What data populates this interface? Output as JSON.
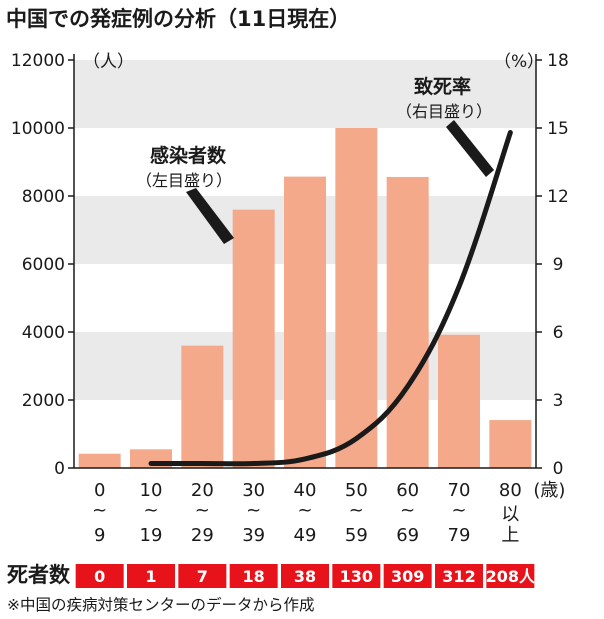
{
  "chart_data": {
    "type": "bar",
    "title": "中国での発症例の分析（11日現在）",
    "categories": [
      {
        "line1": "0",
        "tilde": "~",
        "line2": "9"
      },
      {
        "line1": "10",
        "tilde": "~",
        "line2": "19"
      },
      {
        "line1": "20",
        "tilde": "~",
        "line2": "29"
      },
      {
        "line1": "30",
        "tilde": "~",
        "line2": "39"
      },
      {
        "line1": "40",
        "tilde": "~",
        "line2": "49"
      },
      {
        "line1": "50",
        "tilde": "~",
        "line2": "59"
      },
      {
        "line1": "60",
        "tilde": "~",
        "line2": "69"
      },
      {
        "line1": "70",
        "tilde": "~",
        "line2": "79"
      },
      {
        "line1": "80",
        "tilde": "以",
        "line2": "上"
      }
    ],
    "category_unit": "(歳)",
    "series": [
      {
        "name": "感染者数",
        "axis": "left",
        "kind": "bar",
        "color": "#f4a98a",
        "values": [
          420,
          550,
          3600,
          7600,
          8570,
          10000,
          8560,
          3920,
          1410
        ]
      },
      {
        "name": "致死率",
        "axis": "right",
        "kind": "line",
        "color": "#1a1a1a",
        "values": [
          null,
          0.2,
          0.2,
          0.2,
          0.4,
          1.3,
          3.6,
          8.0,
          14.8
        ]
      }
    ],
    "left_axis": {
      "unit": "（人）",
      "ylim": [
        0,
        12000
      ],
      "ticks": [
        "0",
        "2000",
        "4000",
        "6000",
        "8000",
        "10000",
        "12000"
      ]
    },
    "right_axis": {
      "unit": "（%）",
      "ylim": [
        0,
        18
      ],
      "ticks": [
        "0",
        "3",
        "6",
        "9",
        "12",
        "15",
        "18"
      ]
    },
    "annotations": {
      "bar_label": "感染者数",
      "bar_sub": "（左目盛り）",
      "line_label": "致死率",
      "line_sub": "（右目盛り）"
    },
    "deaths": {
      "label": "死者数",
      "values": [
        "0",
        "1",
        "7",
        "18",
        "38",
        "130",
        "309",
        "312",
        "208人"
      ],
      "color": "#e8121a"
    },
    "source": "※中国の疾病対策センターのデータから作成",
    "band_color": "#eaeaea"
  }
}
